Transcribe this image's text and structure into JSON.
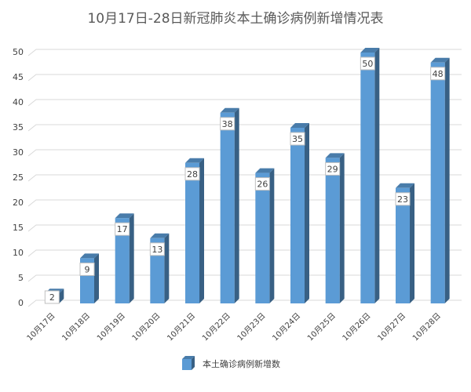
{
  "chart_data": {
    "type": "bar",
    "title": "10月17日-28日新冠肺炎本土确诊病例新增情况表",
    "categories": [
      "10月17日",
      "10月18日",
      "10月19日",
      "10月20日",
      "10月21日",
      "10月22日",
      "10月23日",
      "10月24日",
      "10月25日",
      "10月26日",
      "10月27日",
      "10月28日"
    ],
    "series": [
      {
        "name": "本土确诊病例新增数",
        "color": "#5b9bd5",
        "values": [
          2,
          9,
          17,
          13,
          28,
          38,
          26,
          35,
          29,
          50,
          23,
          48
        ]
      }
    ],
    "ylim": [
      0,
      50
    ],
    "yticks": [
      0,
      5,
      10,
      15,
      20,
      25,
      30,
      35,
      40,
      45,
      50
    ],
    "grid": true,
    "legend": "bottom"
  }
}
